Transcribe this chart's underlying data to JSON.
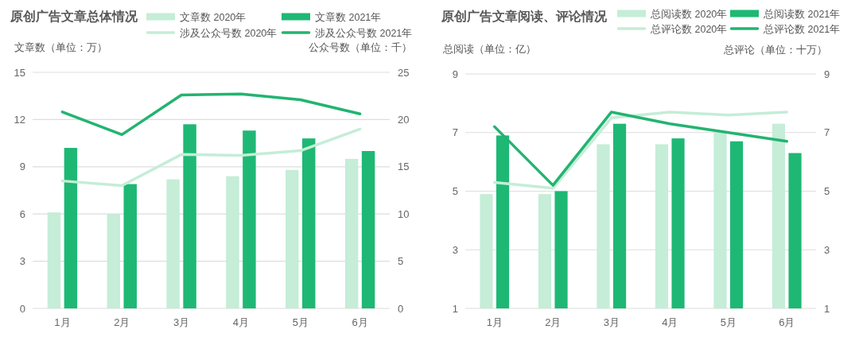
{
  "chart_data": [
    {
      "type": "bar",
      "title": "原创广告文章总体情况",
      "ylabel": "文章数（单位：万）",
      "y2label": "公众号数（单位：千）",
      "categories": [
        "1月",
        "2月",
        "3月",
        "4月",
        "5月",
        "6月"
      ],
      "series": [
        {
          "name": "文章数 2020年",
          "color": "#c5edd7",
          "values": [
            6.1,
            6.0,
            8.2,
            8.4,
            8.8,
            9.5
          ]
        },
        {
          "name": "文章数 2021年",
          "color": "#1eb874",
          "values": [
            10.2,
            7.9,
            11.7,
            11.3,
            10.8,
            10.0
          ]
        },
        {
          "name": "涉及公众号数 2020年",
          "type": "line",
          "axis": "y2",
          "color": "#c5edd7",
          "values": [
            13.5,
            13.0,
            16.3,
            16.2,
            16.7,
            19.0
          ]
        },
        {
          "name": "涉及公众号数 2021年",
          "type": "line",
          "axis": "y2",
          "color": "#22b471",
          "values": [
            20.8,
            18.4,
            22.6,
            22.7,
            22.1,
            20.6
          ]
        }
      ],
      "ylim": [
        0,
        15
      ],
      "yticks": [
        0,
        3,
        6,
        9,
        12,
        15
      ],
      "y2lim": [
        0,
        25
      ],
      "y2ticks": [
        0,
        5,
        10,
        15,
        20,
        25
      ],
      "grid": "y",
      "legend": "top right",
      "line_style": "solid"
    },
    {
      "type": "bar",
      "title": "原创广告文章阅读、评论情况",
      "ylabel": "总阅读（单位：亿）",
      "y2label": "总评论（单位：十万）",
      "categories": [
        "1月",
        "2月",
        "3月",
        "4月",
        "5月",
        "6月"
      ],
      "series": [
        {
          "name": "总阅读数 2020年",
          "color": "#c5edd7",
          "values": [
            4.9,
            4.9,
            6.6,
            6.6,
            7.0,
            7.3
          ]
        },
        {
          "name": "总阅读数 2021年",
          "color": "#1eb874",
          "values": [
            6.9,
            5.0,
            7.3,
            6.8,
            6.7,
            6.3
          ]
        },
        {
          "name": "总评论数 2020年",
          "type": "line",
          "axis": "y2",
          "color": "#c5edd7",
          "values": [
            5.3,
            5.1,
            7.5,
            7.7,
            7.6,
            7.7
          ]
        },
        {
          "name": "总评论数 2021年",
          "type": "line",
          "axis": "y2",
          "color": "#22b471",
          "values": [
            7.2,
            5.2,
            7.7,
            7.3,
            7.0,
            6.7
          ]
        }
      ],
      "ylim": [
        1,
        9
      ],
      "yticks": [
        1,
        3,
        5,
        7,
        9
      ],
      "y2lim": [
        1,
        9
      ],
      "y2ticks": [
        1,
        3,
        5,
        7,
        9
      ],
      "grid": "y",
      "legend": "top right",
      "line_style": "solid"
    }
  ]
}
